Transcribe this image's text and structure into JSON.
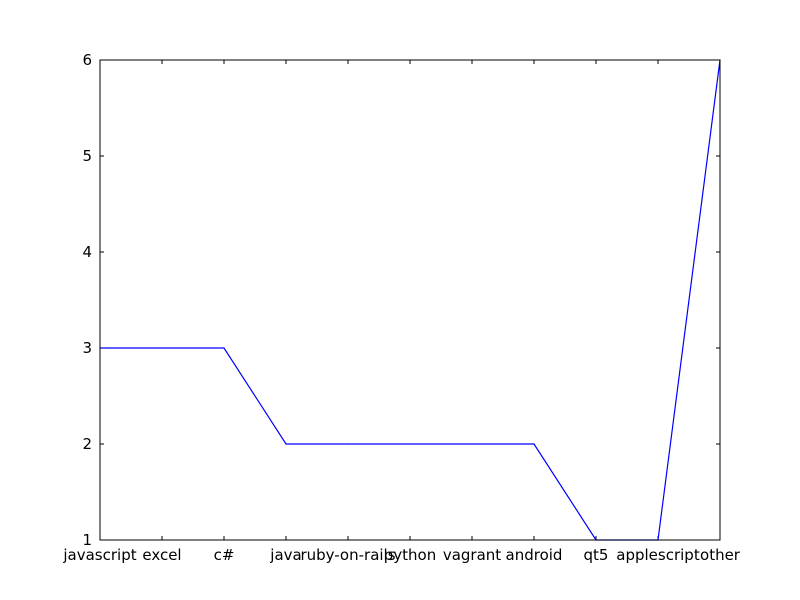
{
  "chart_data": {
    "type": "line",
    "title": "",
    "xlabel": "",
    "ylabel": "",
    "categories": [
      "javascript",
      "excel",
      "c#",
      "java",
      "ruby-on-rails",
      "python",
      "vagrant",
      "android",
      "qt5",
      "applescript",
      "other"
    ],
    "series": [
      {
        "values": [
          3,
          3,
          3,
          2,
          2,
          2,
          2,
          2,
          1,
          1,
          6
        ],
        "color": "#0000ff"
      }
    ],
    "ylim": [
      1,
      6
    ],
    "yticks": [
      1,
      2,
      3,
      4,
      5,
      6
    ],
    "grid": false,
    "legend": "none"
  }
}
